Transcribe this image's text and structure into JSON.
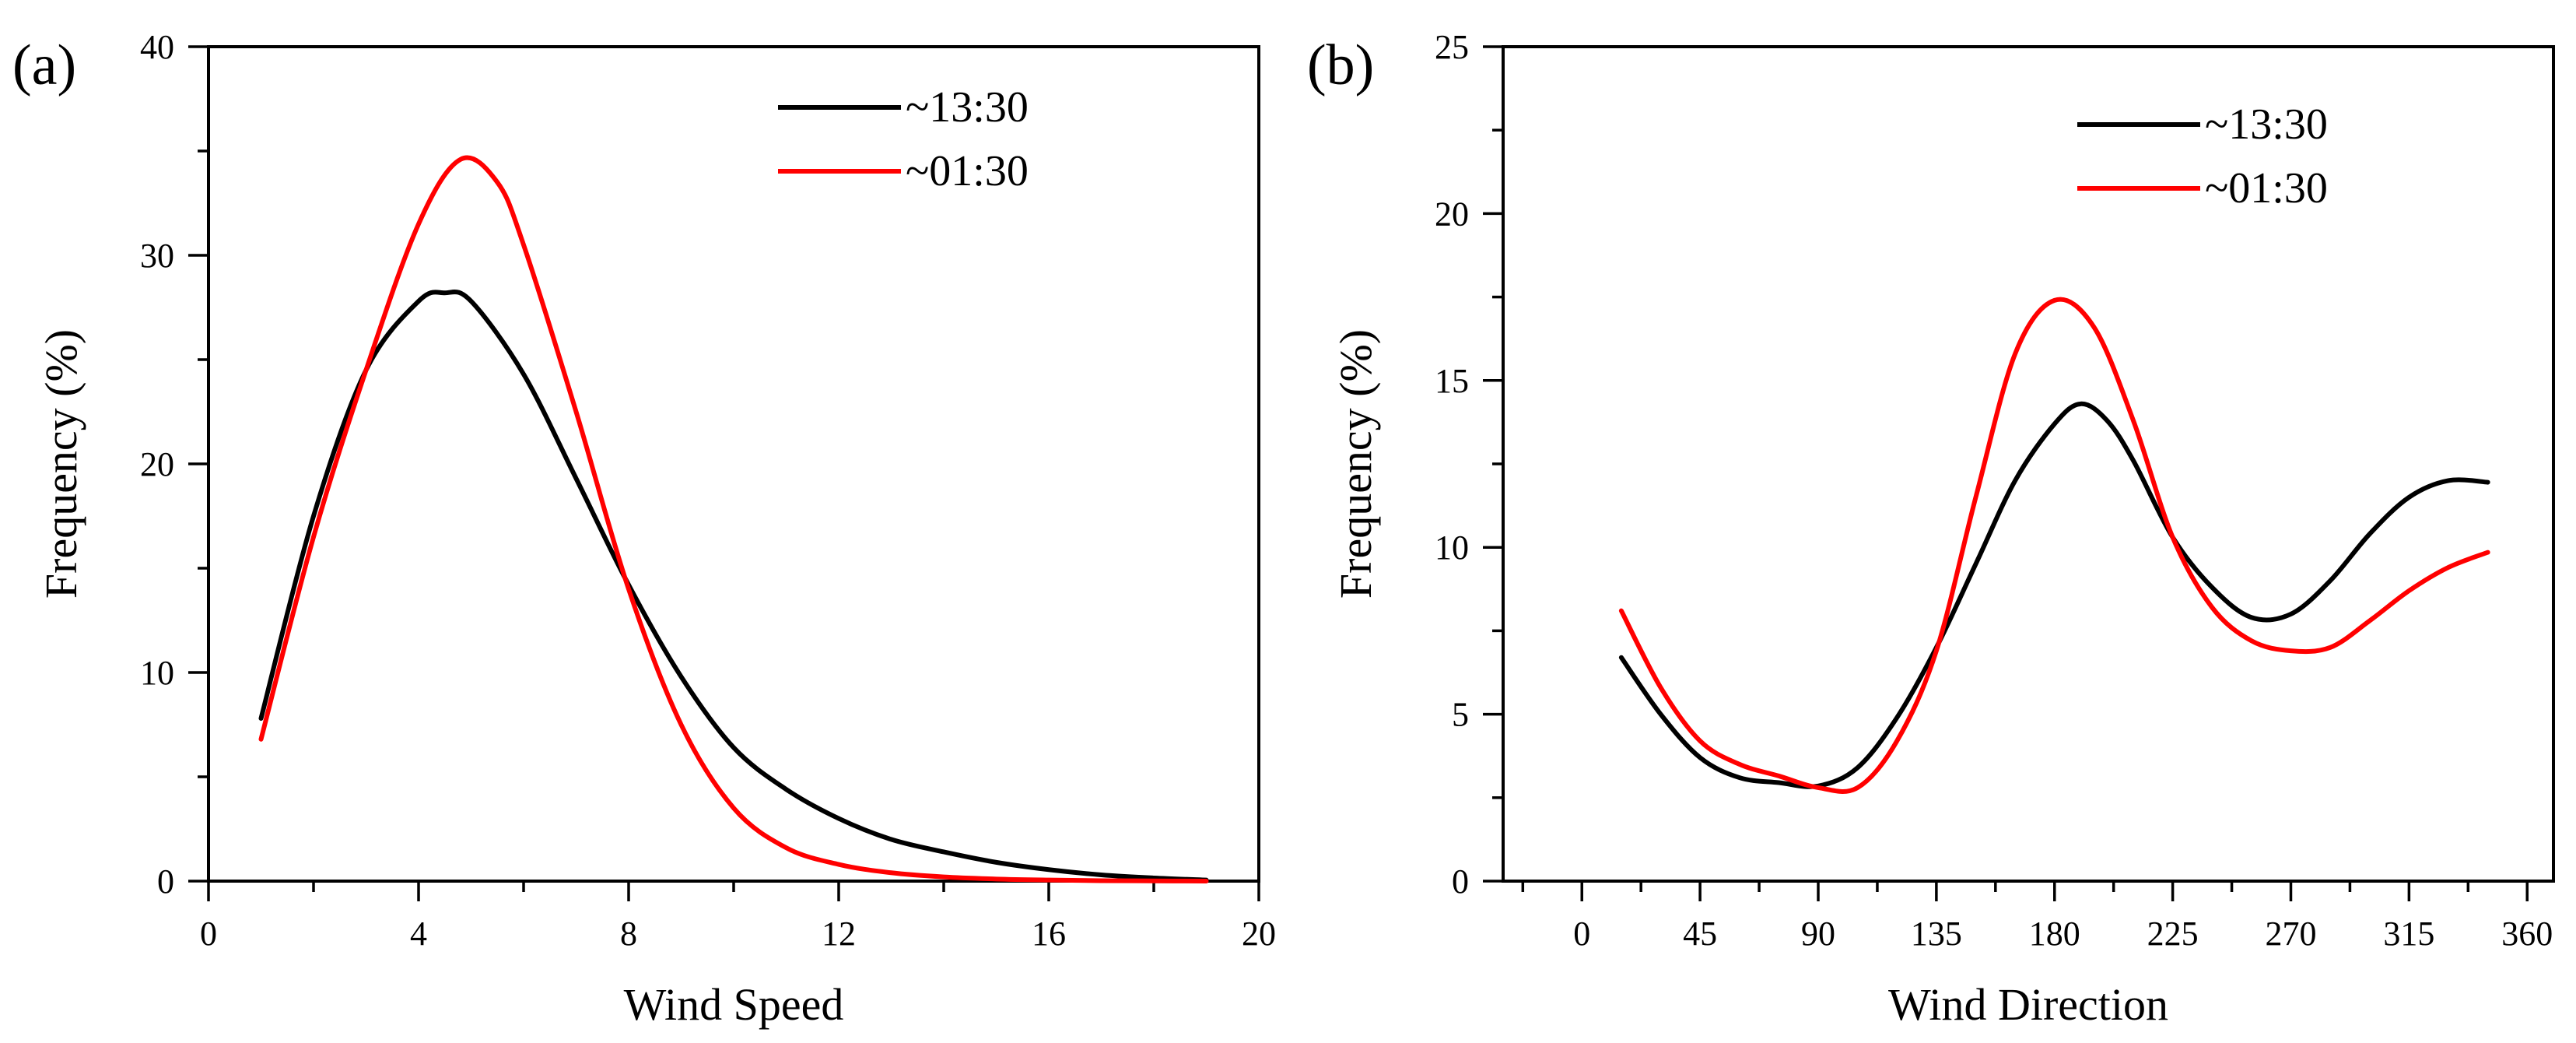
{
  "chart_data": [
    {
      "type": "line",
      "panel_label": "(a)",
      "xlabel": "Wind Speed",
      "ylabel": "Frequency (%)",
      "xlim": [
        0,
        20
      ],
      "ylim": [
        0,
        40
      ],
      "xticks": [
        0,
        4,
        8,
        12,
        16,
        20
      ],
      "yticks": [
        0,
        10,
        20,
        30,
        40
      ],
      "x_minor_step": 2,
      "y_minor_step": 5,
      "legend_position": "top-right",
      "grid": false,
      "series": [
        {
          "name": "~13:30",
          "color": "#000000",
          "x": [
            1,
            2,
            3,
            4,
            4.5,
            5,
            6,
            7,
            8,
            9,
            10,
            11,
            12,
            13,
            14,
            15,
            16,
            17,
            18,
            19
          ],
          "y": [
            7.8,
            17.5,
            24.5,
            27.8,
            28.2,
            27.8,
            24.3,
            19.3,
            14.2,
            9.8,
            6.4,
            4.4,
            3.0,
            2.0,
            1.4,
            0.9,
            0.55,
            0.3,
            0.15,
            0.05
          ]
        },
        {
          "name": "~01:30",
          "color": "#ff0000",
          "x": [
            1,
            2,
            3,
            4,
            4.8,
            5.5,
            6,
            7,
            8,
            9,
            10,
            11,
            12,
            13,
            14,
            15,
            16,
            17,
            18,
            19
          ],
          "y": [
            6.8,
            16.5,
            24.5,
            31.5,
            34.6,
            33.5,
            30.5,
            22.5,
            14.0,
            7.5,
            3.5,
            1.6,
            0.8,
            0.4,
            0.2,
            0.1,
            0.05,
            0.02,
            0.01,
            0
          ]
        }
      ]
    },
    {
      "type": "line",
      "panel_label": "(b)",
      "xlabel": "Wind Direction",
      "ylabel": "Frequency (%)",
      "xlim": [
        -30,
        370
      ],
      "ylim": [
        0,
        25
      ],
      "xticks": [
        0,
        45,
        90,
        135,
        180,
        225,
        270,
        315,
        360
      ],
      "yticks": [
        0,
        5,
        10,
        15,
        20,
        25
      ],
      "x_minor_step": 22.5,
      "y_minor_step": 2.5,
      "legend_position": "top-right",
      "grid": false,
      "series": [
        {
          "name": "~13:30",
          "color": "#000000",
          "x": [
            15,
            30,
            45,
            60,
            75,
            90,
            105,
            120,
            135,
            150,
            165,
            180,
            190,
            200,
            210,
            225,
            240,
            255,
            270,
            285,
            300,
            315,
            330,
            345
          ],
          "y": [
            6.7,
            5.0,
            3.7,
            3.1,
            2.95,
            2.85,
            3.4,
            4.9,
            7.0,
            9.5,
            12.0,
            13.7,
            14.3,
            13.8,
            12.6,
            10.3,
            8.8,
            7.9,
            8.0,
            9.0,
            10.4,
            11.5,
            12.0,
            11.95
          ]
        },
        {
          "name": "~01:30",
          "color": "#ff0000",
          "x": [
            15,
            30,
            45,
            60,
            75,
            90,
            105,
            120,
            135,
            150,
            165,
            180,
            195,
            210,
            225,
            240,
            255,
            270,
            285,
            300,
            315,
            330,
            345
          ],
          "y": [
            8.1,
            5.8,
            4.2,
            3.5,
            3.15,
            2.8,
            2.8,
            4.2,
            6.9,
            11.5,
            15.8,
            17.4,
            16.6,
            13.8,
            10.3,
            8.2,
            7.2,
            6.9,
            7.0,
            7.8,
            8.7,
            9.4,
            9.85
          ]
        }
      ]
    }
  ]
}
